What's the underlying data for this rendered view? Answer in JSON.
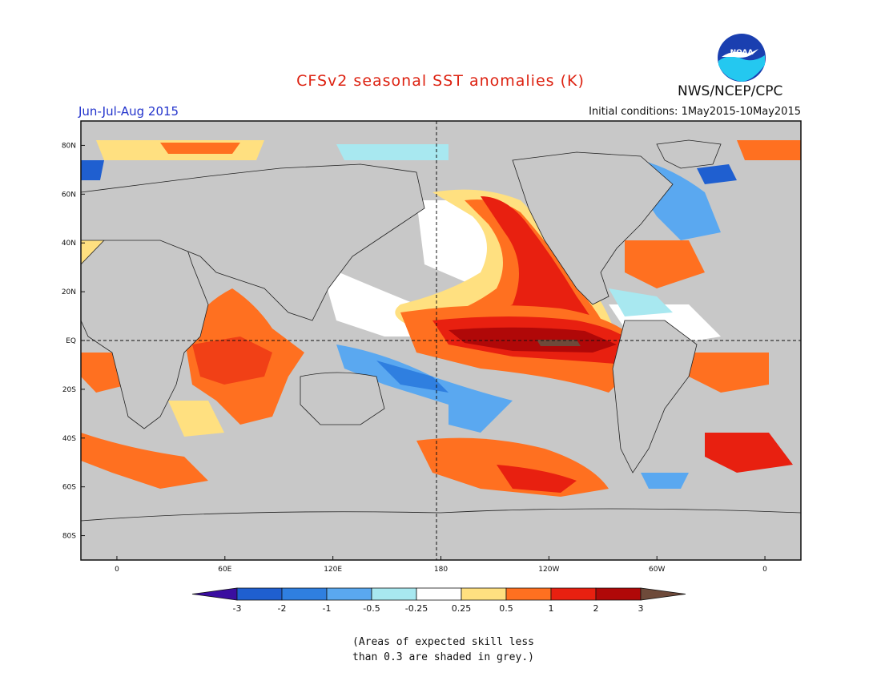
{
  "header": {
    "title": "CFSv2 seasonal SST anomalies (K)",
    "season": "Jun-Jul-Aug 2015",
    "initial_conditions": "Initial conditions: 1May2015-10May2015",
    "agency": "NWS/NCEP/CPC",
    "logo_text": "NOAA"
  },
  "map": {
    "projection": "equirectangular",
    "longitude_range": [
      -20,
      380
    ],
    "latitude_range": [
      -90,
      90
    ],
    "lat_labels": [
      "80N",
      "60N",
      "40N",
      "20N",
      "EQ",
      "20S",
      "40S",
      "60S",
      "80S"
    ],
    "lon_labels": [
      "0",
      "60E",
      "120E",
      "180",
      "120W",
      "60W",
      "0"
    ],
    "land_color": "#c8c8c8",
    "reference_lines": [
      "EQ",
      "180"
    ]
  },
  "colorbar": {
    "labels": [
      "-3",
      "-2",
      "-1",
      "-0.5",
      "-0.25",
      "0.25",
      "0.5",
      "1",
      "2",
      "3"
    ],
    "colors": [
      "#3a0ea0",
      "#1f5fd0",
      "#2f7fe0",
      "#5aa8f0",
      "#a8e8f0",
      "#ffffff",
      "#ffe080",
      "#ff7020",
      "#e82010",
      "#b00808",
      "#6e4a3a"
    ]
  },
  "footnote": {
    "line1": "(Areas of expected skill less",
    "line2": "than 0.3 are shaded in grey.)"
  },
  "colors": {
    "title": "#dd2211",
    "season": "#2233cc"
  }
}
